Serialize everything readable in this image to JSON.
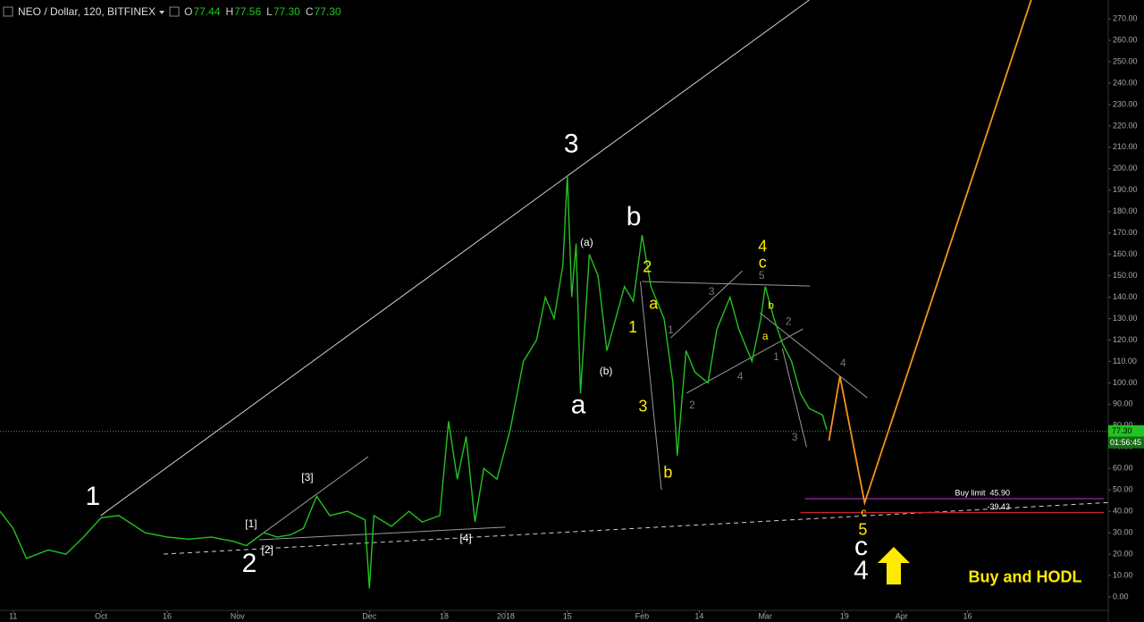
{
  "chart_data": {
    "type": "line",
    "title": "NEO / Dollar, 120, BITFINEX",
    "ohlc": [
      {
        "key": "O",
        "value": "77.44"
      },
      {
        "key": "H",
        "value": "77.56"
      },
      {
        "key": "L",
        "value": "77.30"
      },
      {
        "key": "C",
        "value": "77.30"
      }
    ],
    "xlim": [
      -3,
      249
    ],
    "ylim": [
      -11.7,
      278.8
    ],
    "xticks": [
      {
        "value": 0,
        "label": "11"
      },
      {
        "value": 20,
        "label": "Oct"
      },
      {
        "value": 35,
        "label": "16"
      },
      {
        "value": 51,
        "label": "Nov"
      },
      {
        "value": 81,
        "label": "Dec"
      },
      {
        "value": 98,
        "label": "18"
      },
      {
        "value": 112,
        "label": "2018"
      },
      {
        "value": 126,
        "label": "15"
      },
      {
        "value": 143,
        "label": "Feb"
      },
      {
        "value": 156,
        "label": "14"
      },
      {
        "value": 171,
        "label": "Mar"
      },
      {
        "value": 189,
        "label": "19"
      },
      {
        "value": 202,
        "label": "Apr"
      },
      {
        "value": 217,
        "label": "16"
      }
    ],
    "yticks": [
      {
        "value": 0,
        "label": "0.00"
      },
      {
        "value": 10,
        "label": "10.00"
      },
      {
        "value": 20,
        "label": "20.00"
      },
      {
        "value": 30,
        "label": "30.00"
      },
      {
        "value": 40,
        "label": "40.00"
      },
      {
        "value": 50,
        "label": "50.00"
      },
      {
        "value": 60,
        "label": "60.00"
      },
      {
        "value": 70,
        "label": "70.00"
      },
      {
        "value": 80,
        "label": "80.00"
      },
      {
        "value": 90,
        "label": "90.00"
      },
      {
        "value": 100,
        "label": "100.00"
      },
      {
        "value": 110,
        "label": "110.00"
      },
      {
        "value": 120,
        "label": "120.00"
      },
      {
        "value": 130,
        "label": "130.00"
      },
      {
        "value": 140,
        "label": "140.00"
      },
      {
        "value": 150,
        "label": "150.00"
      },
      {
        "value": 160,
        "label": "160.00"
      },
      {
        "value": 170,
        "label": "170.00"
      },
      {
        "value": 180,
        "label": "180.00"
      },
      {
        "value": 190,
        "label": "190.00"
      },
      {
        "value": 200,
        "label": "200.00"
      },
      {
        "value": 210,
        "label": "210.00"
      },
      {
        "value": 220,
        "label": "220.00"
      },
      {
        "value": 230,
        "label": "230.00"
      },
      {
        "value": 240,
        "label": "240.00"
      },
      {
        "value": 250,
        "label": "250.00"
      },
      {
        "value": 260,
        "label": "260.00"
      },
      {
        "value": 270,
        "label": "270.00"
      }
    ],
    "series": [
      {
        "color": "#22c322",
        "x": [
          -3,
          0,
          3,
          8,
          12,
          16,
          20,
          24,
          30,
          35,
          40,
          45,
          50,
          53,
          57,
          60,
          63,
          66,
          69,
          72,
          76,
          80,
          81,
          82,
          86,
          90,
          93,
          97,
          99,
          101,
          103,
          105,
          107,
          110,
          113,
          116,
          119,
          121,
          123,
          125,
          126,
          127,
          128,
          129,
          131,
          133,
          135,
          137,
          139,
          141,
          143,
          145,
          148,
          150,
          151,
          153,
          155,
          158,
          160,
          163,
          165,
          168,
          170,
          171,
          173,
          175,
          177,
          179,
          181,
          184,
          185
        ],
        "values": [
          40,
          32,
          18,
          22,
          20,
          28,
          37,
          38,
          30,
          28,
          27,
          28,
          26,
          24,
          30,
          28,
          29,
          32,
          47,
          38,
          40,
          36,
          4,
          38,
          33,
          40,
          35,
          38,
          82,
          55,
          75,
          35,
          60,
          55,
          78,
          110,
          120,
          140,
          130,
          155,
          197,
          140,
          165,
          95,
          160,
          150,
          115,
          130,
          145,
          138,
          169,
          145,
          130,
          100,
          66,
          115,
          105,
          100,
          125,
          140,
          125,
          110,
          130,
          145,
          130,
          118,
          110,
          95,
          88,
          85,
          78
        ]
      },
      {
        "color": "#f7931e",
        "x": [
          185.5,
          188,
          193.6,
          231.5
        ],
        "values": [
          73,
          103,
          44,
          279
        ]
      }
    ],
    "lines": [
      {
        "x": [
          19.9,
          181
        ],
        "y": [
          38,
          278.8
        ],
        "color": "#d0d0d0",
        "dash": false
      },
      {
        "x": [
          34.2,
          257.3
        ],
        "y": [
          20,
          45
        ],
        "color": "#d0d0d0",
        "dash": true
      },
      {
        "x": [
          54.5,
          80.7
        ],
        "y": [
          26.3,
          65.5
        ],
        "color": "#9a9a9a",
        "dash": false
      },
      {
        "x": [
          55.9,
          111.9
        ],
        "y": [
          26.7,
          32.6
        ],
        "color": "#9a9a9a",
        "dash": false
      },
      {
        "x": [
          143,
          181.2
        ],
        "y": [
          147.3,
          145.2
        ],
        "color": "#9a9a9a",
        "dash": false
      },
      {
        "x": [
          142.6,
          147.4
        ],
        "y": [
          147.3,
          50
        ],
        "color": "#9a9a9a",
        "dash": false
      },
      {
        "x": [
          149.5,
          165.8
        ],
        "y": [
          121,
          152.3
        ],
        "color": "#9a9a9a",
        "dash": false
      },
      {
        "x": [
          153.1,
          179.6
        ],
        "y": [
          95.2,
          125.2
        ],
        "color": "#9a9a9a",
        "dash": false
      },
      {
        "x": [
          169.8,
          194.2
        ],
        "y": [
          132.7,
          93
        ],
        "color": "#9a9a9a",
        "dash": false
      },
      {
        "x": [
          174.9,
          180.4
        ],
        "y": [
          116,
          70
        ],
        "color": "#9a9a9a",
        "dash": false
      }
    ],
    "last_price": {
      "value": 77.3,
      "label": "77.30",
      "countdown": "01:56:45",
      "color": "#22c322"
    },
    "levels": [
      {
        "value": 45.9,
        "label": "Buy limit  45.90",
        "from": 180,
        "color": "#9c27b0"
      },
      {
        "value": 39.43,
        "label": "-39.43",
        "from": 179,
        "color": "#c62828"
      }
    ],
    "annotations": [
      {
        "text": "1",
        "x": 18.1,
        "y": 46.3,
        "color": "#ffffff",
        "size": "large"
      },
      {
        "text": "2",
        "x": 53.7,
        "y": 15,
        "color": "#ffffff",
        "size": "large"
      },
      {
        "text": "3",
        "x": 126.9,
        "y": 211,
        "color": "#ffffff",
        "size": "large"
      },
      {
        "text": "a",
        "x": 128.5,
        "y": 89,
        "color": "#ffffff",
        "size": "large"
      },
      {
        "text": "b",
        "x": 141.1,
        "y": 177,
        "color": "#ffffff",
        "size": "large"
      },
      {
        "text": "c",
        "x": 192.8,
        "y": 23,
        "color": "#ffffff",
        "size": "large"
      },
      {
        "text": "4",
        "x": 192.8,
        "y": 11.7,
        "color": "#ffffff",
        "size": "large"
      },
      {
        "text": "[1]",
        "x": 54.1,
        "y": 33.8,
        "color": "#ffffff",
        "size": "small"
      },
      {
        "text": "[2]",
        "x": 57.8,
        "y": 21.7,
        "color": "#ffffff",
        "size": "small"
      },
      {
        "text": "[3]",
        "x": 66.9,
        "y": 55.5,
        "color": "#ffffff",
        "size": "small"
      },
      {
        "text": "[4]",
        "x": 102.9,
        "y": 27.1,
        "color": "#ffffff",
        "size": "small"
      },
      {
        "text": "(a)",
        "x": 130.4,
        "y": 165.3,
        "color": "#ffffff",
        "size": "small"
      },
      {
        "text": "(b)",
        "x": 134.8,
        "y": 105.2,
        "color": "#ffffff",
        "size": "small"
      },
      {
        "text": "2",
        "x": 144.2,
        "y": 153.6,
        "color": "#ffeb00",
        "size": "medium"
      },
      {
        "text": "a",
        "x": 145.6,
        "y": 136.5,
        "color": "#ffeb00",
        "size": "medium"
      },
      {
        "text": "1",
        "x": 140.9,
        "y": 125.6,
        "color": "#ffeb00",
        "size": "medium"
      },
      {
        "text": "3",
        "x": 143.2,
        "y": 88.5,
        "color": "#ffeb00",
        "size": "medium"
      },
      {
        "text": "b",
        "x": 148.9,
        "y": 57.6,
        "color": "#ffeb00",
        "size": "medium"
      },
      {
        "text": "4",
        "x": 170.4,
        "y": 163.2,
        "color": "#ffeb00",
        "size": "medium"
      },
      {
        "text": "c",
        "x": 170.4,
        "y": 155.7,
        "color": "#ffeb00",
        "size": "medium"
      },
      {
        "text": "b",
        "x": 172.3,
        "y": 136,
        "color": "#ffeb00",
        "size": "small"
      },
      {
        "text": "a",
        "x": 171,
        "y": 121.5,
        "color": "#ffeb00",
        "size": "small"
      },
      {
        "text": "c",
        "x": 193.4,
        "y": 39.2,
        "color": "#ffeb00",
        "size": "small"
      },
      {
        "text": "5",
        "x": 193.2,
        "y": 30.9,
        "color": "#ffeb00",
        "size": "medium"
      },
      {
        "text": "1",
        "x": 149.5,
        "y": 124.4,
        "color": "#777777",
        "size": "small"
      },
      {
        "text": "3",
        "x": 158.8,
        "y": 142.3,
        "color": "#777777",
        "size": "small"
      },
      {
        "text": "2",
        "x": 154.4,
        "y": 89.3,
        "color": "#777777",
        "size": "small"
      },
      {
        "text": "4",
        "x": 165.3,
        "y": 102.7,
        "color": "#777777",
        "size": "small"
      },
      {
        "text": "5",
        "x": 170.2,
        "y": 149.8,
        "color": "#777777",
        "size": "small"
      },
      {
        "text": "2",
        "x": 176.3,
        "y": 128.5,
        "color": "#777777",
        "size": "small"
      },
      {
        "text": "1",
        "x": 173.5,
        "y": 111.9,
        "color": "#777777",
        "size": "small"
      },
      {
        "text": "3",
        "x": 177.7,
        "y": 74.3,
        "color": "#777777",
        "size": "small"
      },
      {
        "text": "4",
        "x": 188.7,
        "y": 108.9,
        "color": "#777777",
        "size": "small"
      },
      {
        "text": "Buy and HODL",
        "x": 217.2,
        "y": 8.8,
        "color": "#ffeb00",
        "size": "medium"
      }
    ]
  }
}
